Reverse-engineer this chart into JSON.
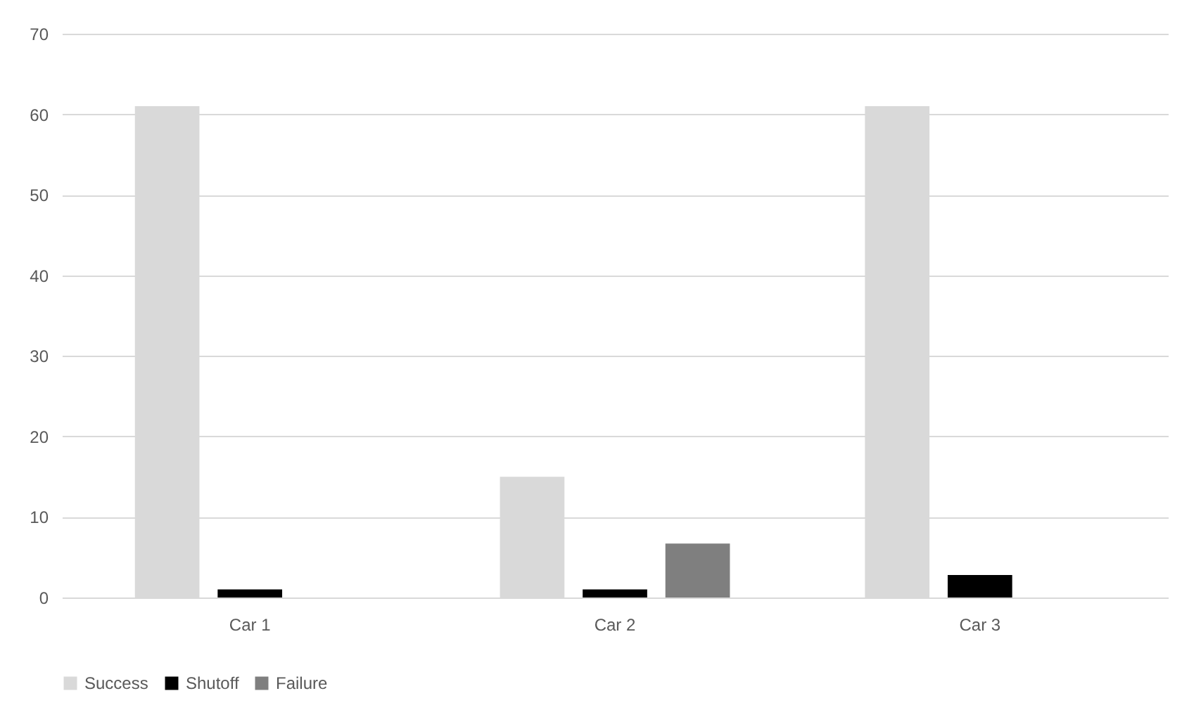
{
  "chart_data": {
    "type": "bar",
    "categories": [
      "Car 1",
      "Car 2",
      "Car 3"
    ],
    "series": [
      {
        "name": "Success",
        "color": "#d9d9d9",
        "values": [
          61,
          15,
          61
        ]
      },
      {
        "name": "Shutoff",
        "color": "#000000",
        "values": [
          1,
          1,
          2.8
        ]
      },
      {
        "name": "Failure",
        "color": "#7f7f7f",
        "values": [
          null,
          6.7,
          null
        ]
      }
    ],
    "ylim": [
      0,
      70
    ],
    "yticks": [
      0,
      10,
      20,
      30,
      40,
      50,
      60,
      70
    ],
    "grid": "y",
    "legend": "bottom"
  }
}
